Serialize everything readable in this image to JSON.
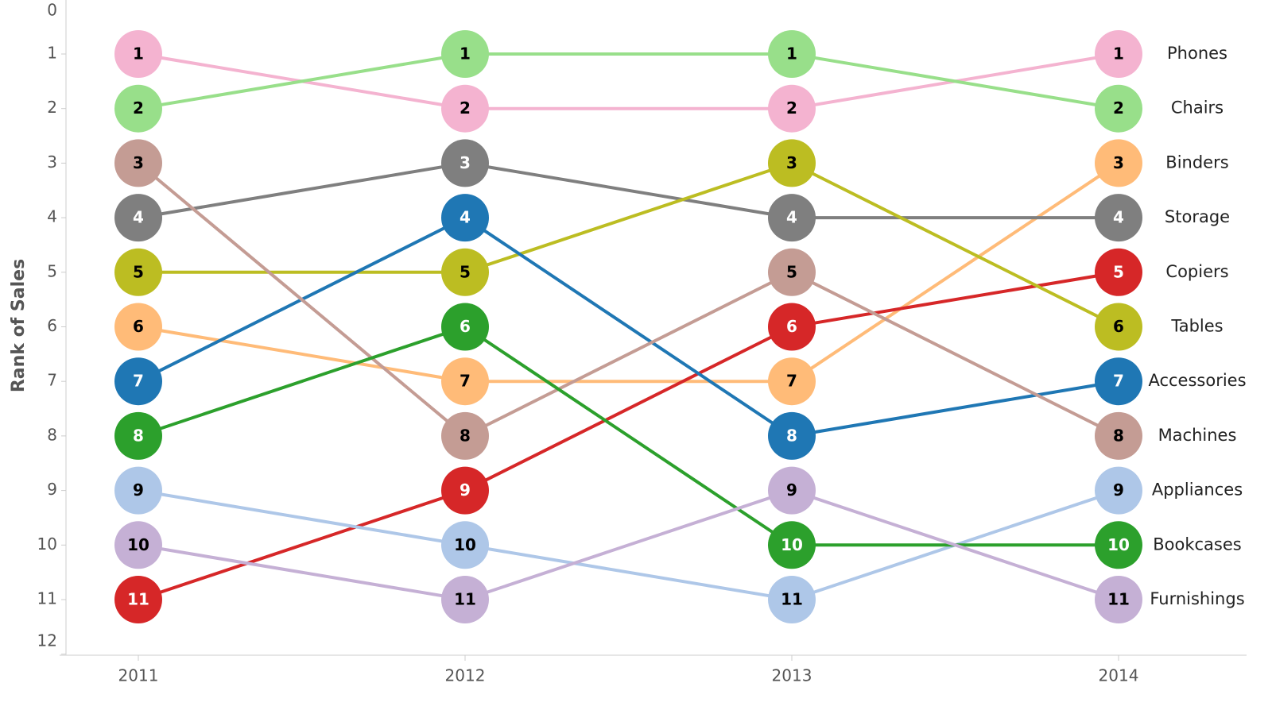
{
  "chart_data": {
    "type": "bump",
    "y_axis_label": "Rank of Sales",
    "categories": [
      "2011",
      "2012",
      "2013",
      "2014"
    ],
    "ylim": [
      0,
      12
    ],
    "y_reversed": true,
    "yticks": [
      0,
      1,
      2,
      3,
      4,
      5,
      6,
      7,
      8,
      9,
      10,
      11,
      12
    ],
    "series": [
      {
        "name": "Phones",
        "color": "#f4b3d0",
        "values": [
          1,
          2,
          2,
          1
        ]
      },
      {
        "name": "Chairs",
        "color": "#98df8a",
        "values": [
          2,
          1,
          1,
          2
        ]
      },
      {
        "name": "Binders",
        "color": "#ffbb78",
        "values": [
          6,
          7,
          7,
          3
        ]
      },
      {
        "name": "Storage",
        "color": "#7f7f7f",
        "values": [
          4,
          3,
          4,
          4
        ]
      },
      {
        "name": "Copiers",
        "color": "#d62728",
        "values": [
          11,
          9,
          6,
          5
        ]
      },
      {
        "name": "Tables",
        "color": "#bcbd22",
        "values": [
          5,
          5,
          3,
          6
        ]
      },
      {
        "name": "Accessories",
        "color": "#1f77b4",
        "values": [
          7,
          4,
          8,
          7
        ]
      },
      {
        "name": "Machines",
        "color": "#c49c94",
        "values": [
          3,
          8,
          5,
          8
        ]
      },
      {
        "name": "Appliances",
        "color": "#aec7e8",
        "values": [
          9,
          10,
          11,
          9
        ]
      },
      {
        "name": "Bookcases",
        "color": "#2ca02c",
        "values": [
          8,
          6,
          10,
          10
        ]
      },
      {
        "name": "Furnishings",
        "color": "#c5b0d5",
        "values": [
          10,
          11,
          9,
          11
        ]
      }
    ]
  }
}
